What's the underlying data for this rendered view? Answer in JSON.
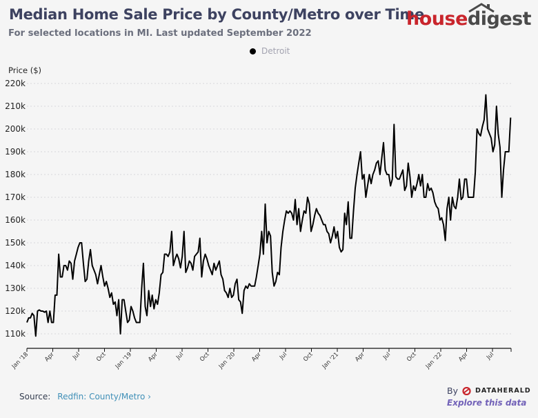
{
  "header": {
    "title": "Median Home Sale Price by County/Metro over Time",
    "subtitle": "For selected locations in MI. Last updated September 2022",
    "logo_part1": "house",
    "logo_part2": "digest"
  },
  "legend": {
    "items": [
      {
        "label": "Detroit",
        "color": "#000000"
      }
    ]
  },
  "footer": {
    "source_label": "Source:",
    "source_link": "Redfin: County/Metro",
    "by_label": "By",
    "brand": "DATAHERALD",
    "explore_label": "Explore this data"
  },
  "colors": {
    "title": "#3d4260",
    "line": "#000000",
    "link": "#3f8fb7",
    "explore": "#7262b8",
    "brand_red": "#c9252c"
  },
  "chart_data": {
    "type": "line",
    "title": "Median Home Sale Price by County/Metro over Time",
    "ylabel": "Price ($)",
    "xlabel": "",
    "ylim": [
      110000,
      220000
    ],
    "yticks": [
      110000,
      120000,
      130000,
      140000,
      150000,
      160000,
      170000,
      180000,
      190000,
      200000,
      210000,
      220000
    ],
    "ytick_labels": [
      "110k",
      "120k",
      "130k",
      "140k",
      "150k",
      "160k",
      "170k",
      "180k",
      "190k",
      "200k",
      "210k",
      "220k"
    ],
    "xlim_months": [
      0,
      56.3
    ],
    "xticks_months": [
      0,
      3,
      6,
      9,
      12,
      15,
      18,
      21,
      24,
      27,
      30,
      33,
      36,
      39,
      42,
      45,
      48,
      51,
      54,
      56
    ],
    "xtick_labels": [
      "Jan '18",
      "Apr",
      "Jul",
      "Oct",
      "Jan '19",
      "Apr",
      "Jul",
      "Oct",
      "Jan '20",
      "Apr",
      "Jul",
      "Oct",
      "Jan '21",
      "Apr",
      "Jul",
      "Oct",
      "Jan '22",
      "Apr",
      "Jul",
      ""
    ],
    "grid": true,
    "legend_position": "top-center",
    "series": [
      {
        "name": "Detroit",
        "x_months_step": 0.2308,
        "values": [
          115000,
          117000,
          117000,
          119000,
          118000,
          109000,
          120000,
          120500,
          120000,
          120000,
          119500,
          120000,
          115000,
          120000,
          115000,
          115000,
          127000,
          127000,
          145000,
          135000,
          135000,
          140000,
          140000,
          138000,
          142000,
          141000,
          134000,
          142000,
          145000,
          148000,
          150000,
          150000,
          141000,
          133000,
          134000,
          142000,
          147000,
          140000,
          138000,
          136000,
          132000,
          136000,
          140000,
          135000,
          131000,
          133000,
          130000,
          126000,
          128000,
          123000,
          124000,
          118000,
          125000,
          110000,
          125000,
          125000,
          120000,
          115000,
          116000,
          122000,
          120000,
          117000,
          115000,
          115000,
          115000,
          130000,
          141000,
          122000,
          118000,
          129000,
          122000,
          127000,
          121000,
          125000,
          123000,
          128000,
          136000,
          137000,
          145000,
          145000,
          144000,
          146000,
          155000,
          140000,
          143000,
          145000,
          143000,
          139000,
          144000,
          155000,
          137000,
          139000,
          142000,
          141000,
          138000,
          144000,
          145000,
          146000,
          152000,
          135000,
          142000,
          145000,
          143000,
          140000,
          138000,
          136000,
          141000,
          138000,
          140000,
          142000,
          136000,
          134000,
          129000,
          128000,
          126000,
          130000,
          126000,
          127000,
          132000,
          134000,
          125000,
          124000,
          119000,
          129000,
          131000,
          130000,
          132000,
          131000,
          131000,
          131000,
          135000,
          140000,
          145000,
          155000,
          145000,
          167000,
          150000,
          155000,
          153000,
          137000,
          131000,
          133000,
          137000,
          136000,
          148000,
          155000,
          160000,
          164000,
          163000,
          164000,
          163000,
          160000,
          169000,
          158000,
          165000,
          155000,
          160000,
          164000,
          163000,
          170000,
          167000,
          155000,
          158000,
          162000,
          165000,
          163000,
          162000,
          160000,
          158000,
          158000,
          155000,
          154000,
          150000,
          153000,
          157000,
          152000,
          155000,
          148000,
          146000,
          147000,
          163000,
          158000,
          168000,
          152000,
          152000,
          164000,
          174000,
          180000,
          185000,
          190000,
          178000,
          180000,
          170000,
          175000,
          180000,
          176000,
          180000,
          182000,
          185000,
          186000,
          180000,
          187000,
          194000,
          182000,
          180000,
          180000,
          175000,
          178000,
          202000,
          179000,
          178000,
          178000,
          180000,
          182000,
          173000,
          175000,
          185000,
          179000,
          170000,
          175000,
          173000,
          176000,
          180000,
          175000,
          180000,
          170000,
          170000,
          176000,
          173000,
          174000,
          172000,
          168000,
          166000,
          165000,
          160000,
          161000,
          158000,
          151000,
          165000,
          170000,
          160000,
          170000,
          166000,
          165000,
          170000,
          178000,
          169000,
          170000,
          178000,
          178000,
          170000,
          170000,
          170000,
          170000,
          181000,
          200000,
          198000,
          197000,
          201000,
          204000,
          215000,
          200000,
          198000,
          196000,
          190000,
          193000,
          210000,
          198000,
          192000,
          170000,
          182000,
          190000,
          190000,
          190000,
          205000
        ]
      }
    ]
  }
}
